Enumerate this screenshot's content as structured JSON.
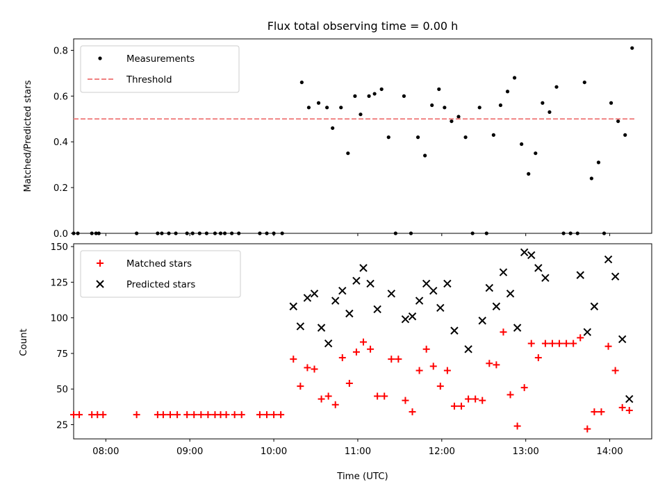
{
  "chart_data": [
    {
      "type": "scatter",
      "title": "Flux total observing time = 0.00 h",
      "xlabel": "",
      "ylabel": "Matched/Predicted stars",
      "xlim": [
        "07:37",
        "14:30"
      ],
      "ylim": [
        0,
        0.85
      ],
      "yticks": [
        0.0,
        0.2,
        0.4,
        0.6,
        0.8
      ],
      "ytick_labels": [
        "0.0",
        "0.2",
        "0.4",
        "0.6",
        "0.8"
      ],
      "legend_position": "top-left",
      "series": [
        {
          "name": "Measurements",
          "marker": "dot",
          "color": "#000000",
          "points": [
            [
              "07:37",
              0
            ],
            [
              "07:40",
              0
            ],
            [
              "07:50",
              0
            ],
            [
              "07:53",
              0
            ],
            [
              "07:55",
              0
            ],
            [
              "08:22",
              0
            ],
            [
              "08:37",
              0
            ],
            [
              "08:40",
              0
            ],
            [
              "08:45",
              0
            ],
            [
              "08:50",
              0
            ],
            [
              "08:58",
              0
            ],
            [
              "09:02",
              0
            ],
            [
              "09:07",
              0
            ],
            [
              "09:12",
              0
            ],
            [
              "09:18",
              0
            ],
            [
              "09:22",
              0
            ],
            [
              "09:25",
              0
            ],
            [
              "09:30",
              0
            ],
            [
              "09:35",
              0
            ],
            [
              "09:50",
              0
            ],
            [
              "09:55",
              0
            ],
            [
              "10:00",
              0
            ],
            [
              "10:06",
              0
            ],
            [
              "10:20",
              0.66
            ],
            [
              "10:25",
              0.55
            ],
            [
              "10:32",
              0.57
            ],
            [
              "10:38",
              0.55
            ],
            [
              "10:42",
              0.46
            ],
            [
              "10:48",
              0.55
            ],
            [
              "10:53",
              0.35
            ],
            [
              "10:58",
              0.6
            ],
            [
              "11:02",
              0.52
            ],
            [
              "11:08",
              0.6
            ],
            [
              "11:12",
              0.61
            ],
            [
              "11:17",
              0.63
            ],
            [
              "11:22",
              0.42
            ],
            [
              "11:27",
              0
            ],
            [
              "11:33",
              0.6
            ],
            [
              "11:38",
              0
            ],
            [
              "11:43",
              0.42
            ],
            [
              "11:48",
              0.34
            ],
            [
              "11:53",
              0.56
            ],
            [
              "11:58",
              0.63
            ],
            [
              "12:02",
              0.55
            ],
            [
              "12:07",
              0.49
            ],
            [
              "12:12",
              0.51
            ],
            [
              "12:17",
              0.42
            ],
            [
              "12:22",
              0
            ],
            [
              "12:27",
              0.55
            ],
            [
              "12:32",
              0
            ],
            [
              "12:37",
              0.43
            ],
            [
              "12:42",
              0.56
            ],
            [
              "12:47",
              0.62
            ],
            [
              "12:52",
              0.68
            ],
            [
              "12:57",
              0.39
            ],
            [
              "13:02",
              0.26
            ],
            [
              "13:07",
              0.35
            ],
            [
              "13:12",
              0.57
            ],
            [
              "13:17",
              0.53
            ],
            [
              "13:22",
              0.64
            ],
            [
              "13:27",
              0
            ],
            [
              "13:32",
              0
            ],
            [
              "13:37",
              0
            ],
            [
              "13:42",
              0.66
            ],
            [
              "13:47",
              0.24
            ],
            [
              "13:52",
              0.31
            ],
            [
              "13:56",
              0
            ],
            [
              "14:01",
              0.57
            ],
            [
              "14:06",
              0.49
            ],
            [
              "14:11",
              0.43
            ],
            [
              "14:16",
              0.81
            ]
          ]
        },
        {
          "name": "Threshold",
          "type": "line",
          "style": "dashed",
          "color": "#f08080",
          "points": [
            [
              "07:37",
              0.5
            ],
            [
              "14:19",
              0.5
            ]
          ]
        }
      ]
    },
    {
      "type": "scatter",
      "title": "",
      "xlabel": "Time (UTC)",
      "ylabel": "Count",
      "xlim": [
        "07:37",
        "14:30"
      ],
      "ylim": [
        15,
        152
      ],
      "yticks": [
        25,
        50,
        75,
        100,
        125,
        150
      ],
      "ytick_labels": [
        "25",
        "50",
        "75",
        "100",
        "125",
        "150"
      ],
      "xticks": [
        "08:00",
        "09:00",
        "10:00",
        "11:00",
        "12:00",
        "13:00",
        "14:00"
      ],
      "xtick_labels": [
        "08:00",
        "09:00",
        "10:00",
        "11:00",
        "12:00",
        "13:00",
        "14:00"
      ],
      "legend_position": "top-left",
      "series": [
        {
          "name": "Matched stars",
          "marker": "plus",
          "color": "#ff0000",
          "points": [
            [
              "07:37",
              32
            ],
            [
              "07:41",
              32
            ],
            [
              "07:50",
              32
            ],
            [
              "07:54",
              32
            ],
            [
              "07:58",
              32
            ],
            [
              "08:22",
              32
            ],
            [
              "08:37",
              32
            ],
            [
              "08:41",
              32
            ],
            [
              "08:46",
              32
            ],
            [
              "08:51",
              32
            ],
            [
              "08:58",
              32
            ],
            [
              "09:03",
              32
            ],
            [
              "09:08",
              32
            ],
            [
              "09:13",
              32
            ],
            [
              "09:18",
              32
            ],
            [
              "09:22",
              32
            ],
            [
              "09:26",
              32
            ],
            [
              "09:32",
              32
            ],
            [
              "09:37",
              32
            ],
            [
              "09:50",
              32
            ],
            [
              "09:55",
              32
            ],
            [
              "10:00",
              32
            ],
            [
              "10:05",
              32
            ],
            [
              "10:14",
              71
            ],
            [
              "10:19",
              52
            ],
            [
              "10:24",
              65
            ],
            [
              "10:29",
              64
            ],
            [
              "10:34",
              43
            ],
            [
              "10:39",
              45
            ],
            [
              "10:44",
              39
            ],
            [
              "10:49",
              72
            ],
            [
              "10:54",
              54
            ],
            [
              "10:59",
              76
            ],
            [
              "11:04",
              83
            ],
            [
              "11:09",
              78
            ],
            [
              "11:14",
              45
            ],
            [
              "11:19",
              45
            ],
            [
              "11:24",
              71
            ],
            [
              "11:29",
              71
            ],
            [
              "11:34",
              42
            ],
            [
              "11:39",
              34
            ],
            [
              "11:44",
              63
            ],
            [
              "11:49",
              78
            ],
            [
              "11:54",
              66
            ],
            [
              "11:59",
              52
            ],
            [
              "12:04",
              63
            ],
            [
              "12:09",
              38
            ],
            [
              "12:14",
              38
            ],
            [
              "12:19",
              43
            ],
            [
              "12:24",
              43
            ],
            [
              "12:29",
              42
            ],
            [
              "12:34",
              68
            ],
            [
              "12:39",
              67
            ],
            [
              "12:44",
              90
            ],
            [
              "12:49",
              46
            ],
            [
              "12:54",
              24
            ],
            [
              "12:59",
              51
            ],
            [
              "13:04",
              82
            ],
            [
              "13:09",
              72
            ],
            [
              "13:14",
              82
            ],
            [
              "13:19",
              82
            ],
            [
              "13:24",
              82
            ],
            [
              "13:29",
              82
            ],
            [
              "13:34",
              82
            ],
            [
              "13:39",
              86
            ],
            [
              "13:44",
              22
            ],
            [
              "13:49",
              34
            ],
            [
              "13:54",
              34
            ],
            [
              "13:59",
              80
            ],
            [
              "14:04",
              63
            ],
            [
              "14:09",
              37
            ],
            [
              "14:14",
              35
            ]
          ]
        },
        {
          "name": "Predicted stars",
          "marker": "x",
          "color": "#000000",
          "points": [
            [
              "10:14",
              108
            ],
            [
              "10:19",
              94
            ],
            [
              "10:24",
              114
            ],
            [
              "10:29",
              117
            ],
            [
              "10:34",
              93
            ],
            [
              "10:39",
              82
            ],
            [
              "10:44",
              112
            ],
            [
              "10:49",
              119
            ],
            [
              "10:54",
              103
            ],
            [
              "10:59",
              126
            ],
            [
              "11:04",
              135
            ],
            [
              "11:09",
              124
            ],
            [
              "11:14",
              106
            ],
            [
              "11:24",
              117
            ],
            [
              "11:34",
              99
            ],
            [
              "11:39",
              101
            ],
            [
              "11:44",
              112
            ],
            [
              "11:49",
              124
            ],
            [
              "11:54",
              119
            ],
            [
              "11:59",
              107
            ],
            [
              "12:04",
              124
            ],
            [
              "12:09",
              91
            ],
            [
              "12:19",
              78
            ],
            [
              "12:29",
              98
            ],
            [
              "12:34",
              121
            ],
            [
              "12:39",
              108
            ],
            [
              "12:44",
              132
            ],
            [
              "12:49",
              117
            ],
            [
              "12:54",
              93
            ],
            [
              "12:59",
              146
            ],
            [
              "13:04",
              144
            ],
            [
              "13:09",
              135
            ],
            [
              "13:14",
              128
            ],
            [
              "13:39",
              130
            ],
            [
              "13:44",
              90
            ],
            [
              "13:49",
              108
            ],
            [
              "13:59",
              141
            ],
            [
              "14:04",
              129
            ],
            [
              "14:09",
              85
            ],
            [
              "14:14",
              43
            ]
          ]
        }
      ]
    }
  ]
}
